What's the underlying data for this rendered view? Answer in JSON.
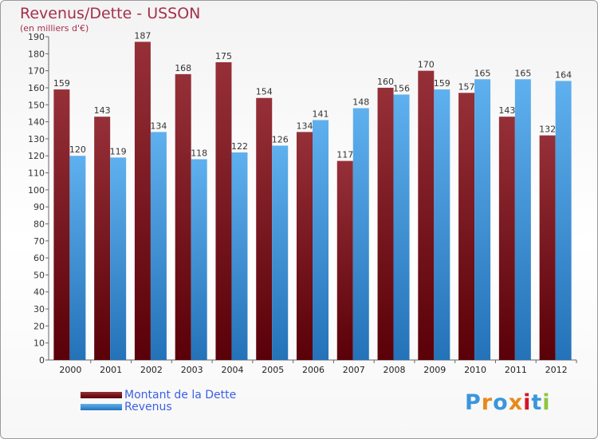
{
  "header": {
    "title": "Revenus/Dette - USSON",
    "subtitle": "(en milliers d'€)"
  },
  "chart_data": {
    "type": "bar",
    "categories": [
      "2000",
      "2001",
      "2002",
      "2003",
      "2004",
      "2005",
      "2006",
      "2007",
      "2008",
      "2009",
      "2010",
      "2011",
      "2012"
    ],
    "series": [
      {
        "name": "Montant de la Dette",
        "values": [
          159,
          143,
          187,
          168,
          175,
          154,
          134,
          117,
          160,
          170,
          157,
          143,
          132
        ],
        "color": "#6b0d15"
      },
      {
        "name": "Revenus",
        "values": [
          120,
          119,
          134,
          118,
          122,
          126,
          141,
          148,
          156,
          159,
          165,
          165,
          164
        ],
        "color": "#3b96dc"
      }
    ],
    "ylim": [
      0,
      190
    ],
    "ytick_step": 10,
    "grid": false,
    "legend_position": "bottom-left"
  },
  "logo": {
    "text": "Proxiti",
    "colors": [
      "#3b96dc",
      "#e8891c",
      "#3b96dc",
      "#e8891c",
      "#d4142a",
      "#3b96dc",
      "#8cc63f"
    ]
  }
}
